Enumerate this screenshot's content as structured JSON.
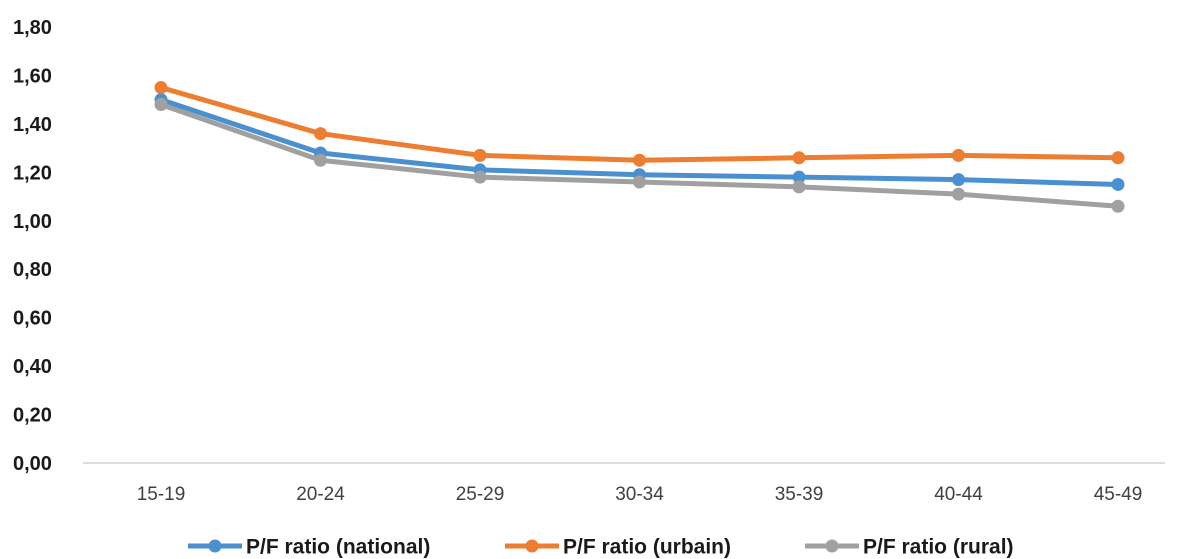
{
  "chart_data": {
    "type": "line",
    "categories": [
      "15-19",
      "20-24",
      "25-29",
      "30-34",
      "35-39",
      "40-44",
      "45-49"
    ],
    "series": [
      {
        "name": "P/F ratio (national)",
        "color": "#4a90d0",
        "values": [
          1.5,
          1.28,
          1.21,
          1.19,
          1.18,
          1.17,
          1.15
        ]
      },
      {
        "name": "P/F ratio (urbain)",
        "color": "#ed7d31",
        "values": [
          1.55,
          1.36,
          1.27,
          1.25,
          1.26,
          1.27,
          1.26
        ]
      },
      {
        "name": "P/F ratio (rural)",
        "color": "#a0a0a0",
        "values": [
          1.48,
          1.25,
          1.18,
          1.16,
          1.14,
          1.11,
          1.06
        ]
      }
    ],
    "yticks": [
      "0,00",
      "0,20",
      "0,40",
      "0,60",
      "0,80",
      "1,00",
      "1,20",
      "1,40",
      "1,60",
      "1,80"
    ],
    "ylim": [
      0,
      1.8
    ],
    "title": "",
    "xlabel": "",
    "ylabel": "",
    "grid": false,
    "legend_position": "bottom"
  }
}
